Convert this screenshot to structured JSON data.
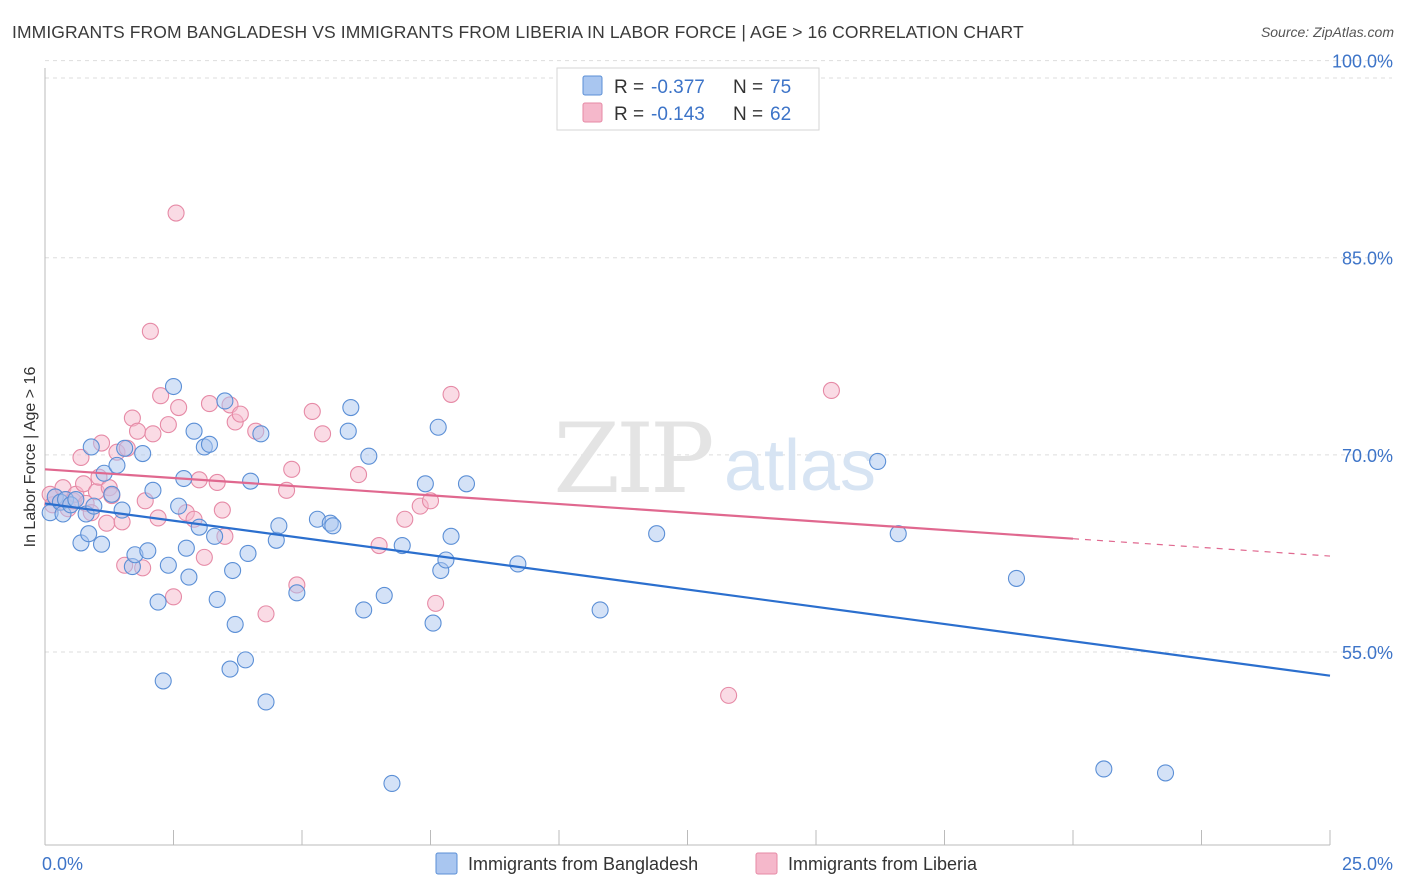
{
  "title": "IMMIGRANTS FROM BANGLADESH VS IMMIGRANTS FROM LIBERIA IN LABOR FORCE | AGE > 16 CORRELATION CHART",
  "source": "Source: ZipAtlas.com",
  "watermark": {
    "zip": "ZIP",
    "atlas": "atlas"
  },
  "colors": {
    "blue_fill": "#a9c6f0",
    "blue_stroke": "#5b8fd6",
    "blue_line": "#2b6fce",
    "pink_fill": "#f5b8cb",
    "pink_stroke": "#e68aa6",
    "pink_line": "#e0688f",
    "axis_text": "#3d74c8",
    "grid": "#dddddd"
  },
  "legend": {
    "rows": [
      {
        "r_label": "R =",
        "r_value": "-0.377",
        "n_label": "N =",
        "n_value": "75"
      },
      {
        "r_label": "R =",
        "r_value": "-0.143",
        "n_label": "N =",
        "n_value": "62"
      }
    ]
  },
  "chart_data": {
    "type": "scatter",
    "title": "IMMIGRANTS FROM BANGLADESH VS IMMIGRANTS FROM LIBERIA IN LABOR FORCE | AGE > 16 CORRELATION CHART",
    "xlabel": "",
    "ylabel": "In Labor Force | Age > 16",
    "xlim": [
      0,
      25
    ],
    "ylim": [
      42,
      102
    ],
    "x_tick_labels": [
      "0.0%",
      "25.0%"
    ],
    "y_ticks": [
      55,
      70,
      85,
      100
    ],
    "y_tick_labels": [
      "55.0%",
      "70.0%",
      "85.0%",
      "100.0%"
    ],
    "series": [
      {
        "name": "Immigrants from Bangladesh",
        "color": "blue",
        "trend": {
          "x0": 0,
          "y0": 66.3,
          "x1": 25,
          "y1": 53.2,
          "dashed_from": null
        },
        "points": [
          [
            0.1,
            65.6
          ],
          [
            0.2,
            66.8
          ],
          [
            0.3,
            66.4
          ],
          [
            0.35,
            65.5
          ],
          [
            0.4,
            66.6
          ],
          [
            0.5,
            66.2
          ],
          [
            0.6,
            66.6
          ],
          [
            0.7,
            63.3
          ],
          [
            0.8,
            65.5
          ],
          [
            0.85,
            64.0
          ],
          [
            0.9,
            70.6
          ],
          [
            0.95,
            66.1
          ],
          [
            1.1,
            63.2
          ],
          [
            1.15,
            68.6
          ],
          [
            1.3,
            67.0
          ],
          [
            1.4,
            69.2
          ],
          [
            1.5,
            65.8
          ],
          [
            1.55,
            70.5
          ],
          [
            1.7,
            61.5
          ],
          [
            1.75,
            62.4
          ],
          [
            1.9,
            70.1
          ],
          [
            2.0,
            62.7
          ],
          [
            2.1,
            67.3
          ],
          [
            2.2,
            58.8
          ],
          [
            2.3,
            52.8
          ],
          [
            2.4,
            61.6
          ],
          [
            2.5,
            75.2
          ],
          [
            2.6,
            66.1
          ],
          [
            2.7,
            68.2
          ],
          [
            2.75,
            62.9
          ],
          [
            2.8,
            60.7
          ],
          [
            2.9,
            71.8
          ],
          [
            3.0,
            64.5
          ],
          [
            3.1,
            70.6
          ],
          [
            3.2,
            70.8
          ],
          [
            3.3,
            63.8
          ],
          [
            3.35,
            59.0
          ],
          [
            3.5,
            74.1
          ],
          [
            3.6,
            53.7
          ],
          [
            3.65,
            61.2
          ],
          [
            3.7,
            57.1
          ],
          [
            3.9,
            54.4
          ],
          [
            3.95,
            62.5
          ],
          [
            4.0,
            68.0
          ],
          [
            4.2,
            71.6
          ],
          [
            4.3,
            51.2
          ],
          [
            4.5,
            63.5
          ],
          [
            4.55,
            64.6
          ],
          [
            4.9,
            59.5
          ],
          [
            5.3,
            65.1
          ],
          [
            5.55,
            64.8
          ],
          [
            5.6,
            64.6
          ],
          [
            5.9,
            71.8
          ],
          [
            5.95,
            73.6
          ],
          [
            6.2,
            58.2
          ],
          [
            6.3,
            69.9
          ],
          [
            6.6,
            59.3
          ],
          [
            6.75,
            45.0
          ],
          [
            6.95,
            63.1
          ],
          [
            7.4,
            67.8
          ],
          [
            7.55,
            57.2
          ],
          [
            7.65,
            72.1
          ],
          [
            7.7,
            61.2
          ],
          [
            7.8,
            62.0
          ],
          [
            7.9,
            63.8
          ],
          [
            8.2,
            67.8
          ],
          [
            9.2,
            61.7
          ],
          [
            10.8,
            58.2
          ],
          [
            11.9,
            64.0
          ],
          [
            16.2,
            69.5
          ],
          [
            16.6,
            64.0
          ],
          [
            18.9,
            60.6
          ],
          [
            20.6,
            46.1
          ],
          [
            21.8,
            45.8
          ]
        ]
      },
      {
        "name": "Immigrants from Liberia",
        "color": "pink",
        "trend": {
          "x0": 0,
          "y0": 68.9,
          "x1": 25,
          "y1": 62.3,
          "dashed_from": 20
        },
        "points": [
          [
            0.1,
            67.0
          ],
          [
            0.15,
            66.2
          ],
          [
            0.2,
            66.8
          ],
          [
            0.3,
            66.4
          ],
          [
            0.35,
            67.5
          ],
          [
            0.4,
            66.6
          ],
          [
            0.45,
            65.9
          ],
          [
            0.55,
            66.5
          ],
          [
            0.6,
            67.0
          ],
          [
            0.7,
            69.8
          ],
          [
            0.75,
            67.8
          ],
          [
            0.8,
            66.3
          ],
          [
            0.9,
            65.6
          ],
          [
            1.0,
            67.2
          ],
          [
            1.05,
            68.3
          ],
          [
            1.1,
            70.9
          ],
          [
            1.2,
            64.8
          ],
          [
            1.25,
            67.5
          ],
          [
            1.3,
            66.9
          ],
          [
            1.4,
            70.2
          ],
          [
            1.5,
            64.9
          ],
          [
            1.55,
            61.6
          ],
          [
            1.6,
            70.5
          ],
          [
            1.7,
            72.8
          ],
          [
            1.8,
            71.8
          ],
          [
            1.9,
            61.4
          ],
          [
            1.95,
            66.5
          ],
          [
            2.05,
            79.4
          ],
          [
            2.1,
            71.6
          ],
          [
            2.2,
            65.2
          ],
          [
            2.25,
            74.5
          ],
          [
            2.4,
            72.3
          ],
          [
            2.5,
            59.2
          ],
          [
            2.55,
            88.4
          ],
          [
            2.6,
            73.6
          ],
          [
            2.75,
            65.6
          ],
          [
            2.9,
            65.1
          ],
          [
            3.0,
            68.1
          ],
          [
            3.1,
            62.2
          ],
          [
            3.2,
            73.9
          ],
          [
            3.35,
            67.9
          ],
          [
            3.45,
            65.8
          ],
          [
            3.5,
            63.8
          ],
          [
            3.6,
            73.8
          ],
          [
            3.7,
            72.5
          ],
          [
            3.8,
            73.1
          ],
          [
            4.1,
            71.8
          ],
          [
            4.3,
            57.9
          ],
          [
            4.7,
            67.3
          ],
          [
            4.8,
            68.9
          ],
          [
            4.9,
            60.1
          ],
          [
            5.2,
            73.3
          ],
          [
            5.4,
            71.6
          ],
          [
            6.1,
            68.5
          ],
          [
            6.5,
            63.1
          ],
          [
            7.0,
            65.1
          ],
          [
            7.3,
            66.1
          ],
          [
            7.5,
            66.5
          ],
          [
            7.6,
            58.7
          ],
          [
            7.9,
            74.6
          ],
          [
            13.3,
            51.7
          ],
          [
            15.3,
            74.9
          ]
        ]
      }
    ],
    "legend_labels": [
      "Immigrants from Bangladesh",
      "Immigrants from Liberia"
    ]
  }
}
